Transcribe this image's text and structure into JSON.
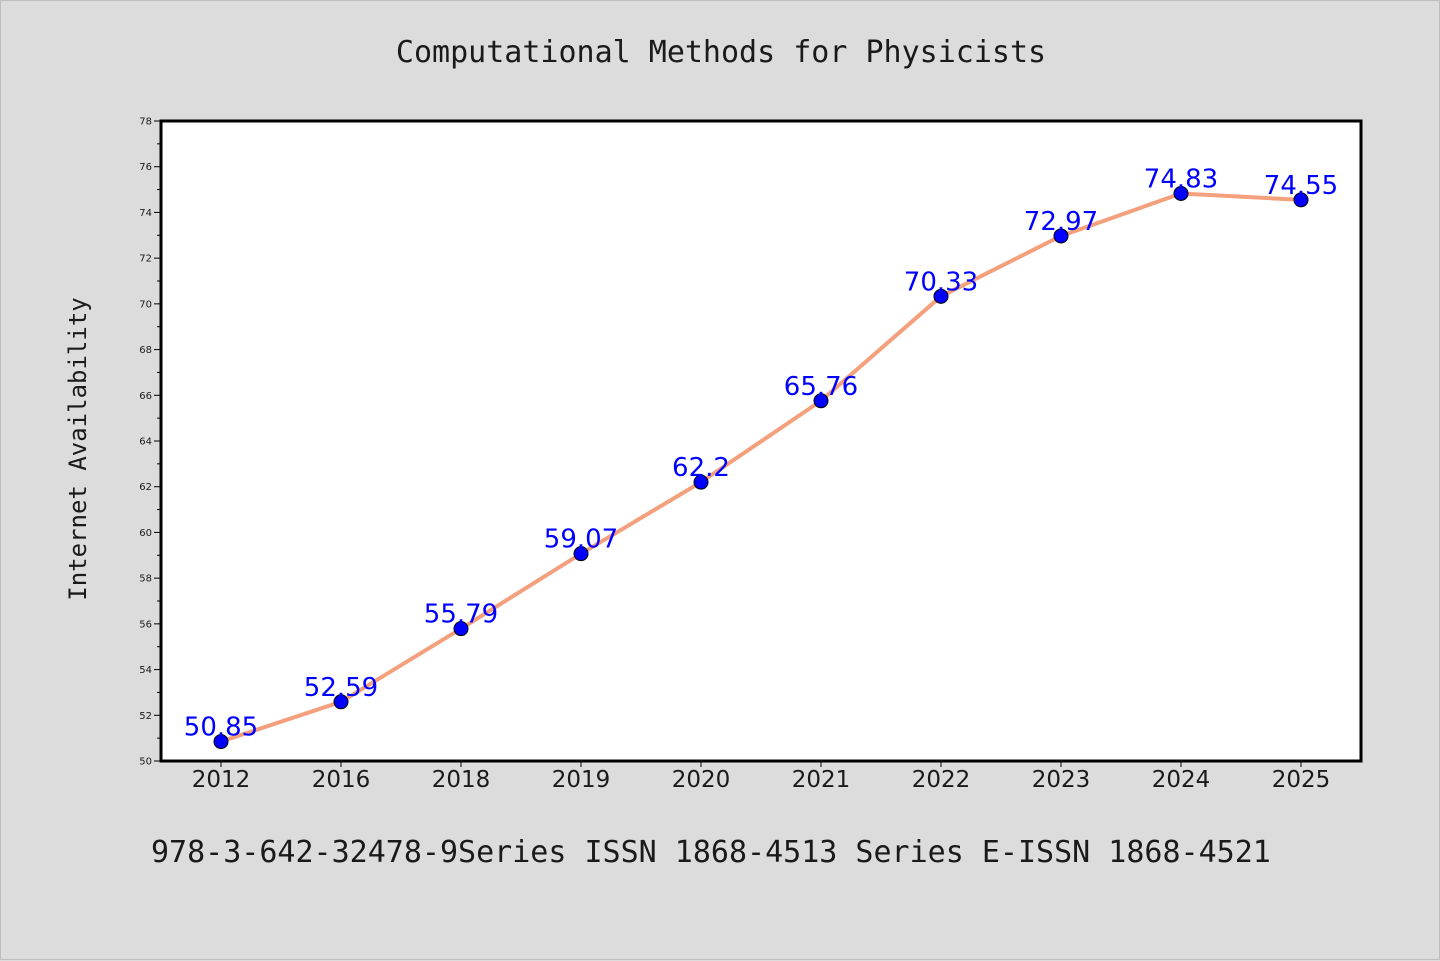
{
  "chart_data": {
    "type": "line",
    "title": "Computational Methods for Physicists",
    "ylabel": "Internet Availability",
    "xlabel": "",
    "categories": [
      "2012",
      "2016",
      "2018",
      "2019",
      "2020",
      "2021",
      "2022",
      "2023",
      "2024",
      "2025"
    ],
    "series": [
      {
        "values": [
          50.85,
          52.59,
          55.79,
          59.07,
          62.2,
          65.76,
          70.33,
          72.97,
          74.83,
          74.55
        ],
        "data_labels": [
          "50.85",
          "52.59",
          "55.79",
          "59.07",
          "62.2",
          "65.76",
          "70.33",
          "72.97",
          "74.83",
          "74.55"
        ]
      }
    ],
    "ylim": [
      50,
      78
    ],
    "yticks": [
      50,
      52,
      54,
      56,
      58,
      60,
      62,
      64,
      66,
      68,
      70,
      72,
      74,
      76,
      78
    ],
    "ytick_labels": [
      "50",
      "52",
      "54",
      "56",
      "58",
      "60",
      "62",
      "64",
      "66",
      "68",
      "70",
      "72",
      "74",
      "76",
      "78"
    ],
    "grid": false,
    "colors": {
      "line": "#f5a07c",
      "marker": "#0000ff",
      "marker_edge": "#000000",
      "data_label": "#0000ff",
      "frame": "#000000",
      "plot_bg": "#ffffff"
    }
  },
  "footer_note": "978-3-642-32478-9Series ISSN 1868-4513 Series E-ISSN 1868-4521"
}
